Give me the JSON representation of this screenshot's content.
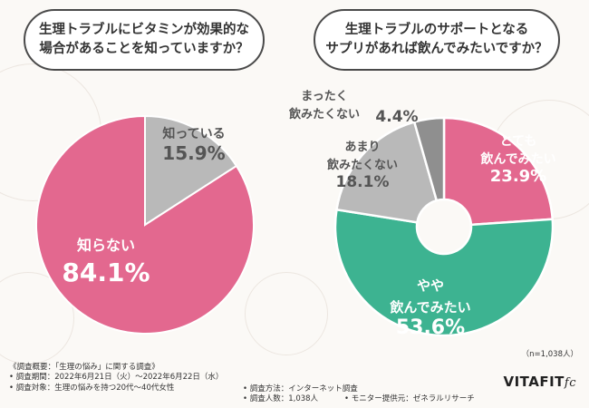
{
  "questions": {
    "q1": "生理トラブルにビタミンが効果的な\n場合があることを知っていますか？",
    "q2": "生理トラブルのサポートとなる\nサプリがあれば飲んでみたいですか？"
  },
  "sample_note": "（n=1,038人）",
  "survey": {
    "heading": "《調査概要：「生理の悩み」に関する調査》",
    "period": "• 調査期間：2022年6月21日（火）～2022年6月22日（水）",
    "target": "• 調査対象：生理の悩みを持つ20代～40代女性",
    "method": "• 調査方法：インターネット調査",
    "count": "• 調査人数：1,038人",
    "provider": "• モニター提供元：ゼネラルリサーチ"
  },
  "brand": {
    "main": "VITAFIT",
    "suffix": "fc"
  },
  "colors": {
    "pink": "#e3688f",
    "gray": "#b9b9b9",
    "green": "#3db391",
    "darkgray": "#8f8f8f"
  },
  "chart_data": [
    {
      "type": "pie",
      "title": "生理トラブルにビタミンが効果的な場合があることを知っていますか？",
      "slices": [
        {
          "label": "知っている",
          "value": 15.9,
          "value_label": "15.9%"
        },
        {
          "label": "知らない",
          "value": 84.1,
          "value_label": "84.1%"
        }
      ]
    },
    {
      "type": "pie",
      "title": "生理トラブルのサポートとなるサプリがあれば飲んでみたいですか？",
      "slices": [
        {
          "label": "とても 飲んでみたい",
          "value": 23.9,
          "value_label": "23.9%"
        },
        {
          "label": "やや 飲んでみたい",
          "value": 53.6,
          "value_label": "53.6%"
        },
        {
          "label": "あまり 飲みたくない",
          "value": 18.1,
          "value_label": "18.1%"
        },
        {
          "label": "まったく 飲みたくない",
          "value": 4.4,
          "value_label": "4.4%"
        }
      ]
    }
  ]
}
